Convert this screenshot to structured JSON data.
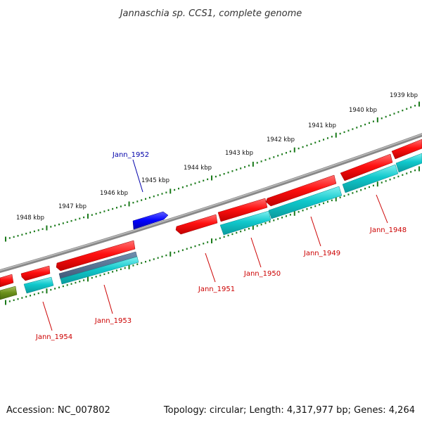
{
  "title": "Jannaschia sp. CCS1, complete genome",
  "footer": {
    "accession": "Accession: NC_007802",
    "topology": "Topology: circular; Length: 4,317,977 bp; Genes: 4,264"
  },
  "kbp_labels": [
    "1939 kbp",
    "1940 kbp",
    "1941 kbp",
    "1942 kbp",
    "1943 kbp",
    "1944 kbp",
    "1945 kbp",
    "1946 kbp",
    "1947 kbp",
    "1948 kbp"
  ],
  "gene_labels": [
    "Jann_1952",
    "Jann_1948",
    "Jann_1949",
    "Jann_1950",
    "Jann_1951",
    "Jann_1953",
    "Jann_1954"
  ],
  "colors": {
    "forward_gene": "#ff1010",
    "reverse_gene": "#10c8cc",
    "highlight_gene": "#0000ff",
    "other_gene": "#6a8f1a",
    "backbone": "#888888",
    "ticks": "#1a7a1a",
    "label_red": "#cc0000",
    "label_blue": "#0000aa"
  }
}
